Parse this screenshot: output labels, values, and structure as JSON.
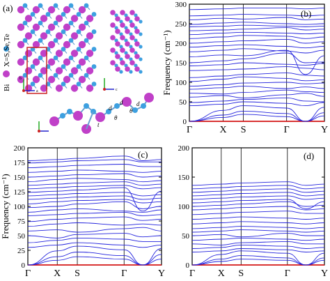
{
  "panel_a": {
    "label": "(a)",
    "legend_bi": "Bi",
    "legend_x": "X=S,Se,Te",
    "axis_b": "b",
    "axis_c": "c",
    "axis_a": "a",
    "geom_labels": {
      "d1": "d",
      "d2": "d",
      "d3": "d",
      "t": "t",
      "theta1": "θ",
      "theta2": "θ"
    },
    "colors": {
      "bi": "#c040c8",
      "x": "#3da0e0",
      "bond": "#6aa0d0",
      "cell": "#cc2222"
    }
  },
  "chart_data": [
    {
      "id": "b",
      "type": "line",
      "title": "",
      "panel_label": "(b)",
      "xlabel": "",
      "ylabel": "Frequency (cm⁻¹)",
      "ylim": [
        0,
        300
      ],
      "yticks": [
        0,
        50,
        100,
        150,
        200,
        250,
        300
      ],
      "kpath": [
        {
          "label": "Γ",
          "x": 0.0
        },
        {
          "label": "X",
          "x": 0.25
        },
        {
          "label": "S",
          "x": 0.4
        },
        {
          "label": "Γ",
          "x": 0.72
        },
        {
          "label": "Y",
          "x": 1.0
        }
      ],
      "zero_line_color": "#dd0000",
      "line_color": "#2222dd",
      "series": [
        {
          "values": [
            0,
            10,
            18,
            12,
            0,
            14
          ]
        },
        {
          "values": [
            0,
            16,
            26,
            20,
            0,
            22
          ]
        },
        {
          "values": [
            0,
            28,
            40,
            34,
            0,
            36
          ]
        },
        {
          "values": [
            40,
            44,
            50,
            46,
            40,
            48
          ]
        },
        {
          "values": [
            48,
            52,
            56,
            60,
            52,
            50
          ]
        },
        {
          "values": [
            62,
            66,
            60,
            68,
            72,
            64
          ]
        },
        {
          "values": [
            72,
            70,
            74,
            80,
            76,
            74
          ]
        },
        {
          "values": [
            82,
            86,
            90,
            84,
            88,
            84
          ]
        },
        {
          "values": [
            90,
            94,
            98,
            100,
            96,
            98
          ]
        },
        {
          "values": [
            102,
            108,
            114,
            110,
            104,
            106
          ]
        },
        {
          "values": [
            112,
            116,
            120,
            124,
            118,
            116
          ]
        },
        {
          "values": [
            130,
            132,
            134,
            140,
            136,
            132
          ]
        },
        {
          "values": [
            142,
            145,
            150,
            146,
            144,
            148
          ]
        },
        {
          "values": [
            150,
            155,
            160,
            175,
            150,
            152
          ]
        },
        {
          "values": [
            165,
            170,
            168,
            182,
            120,
            168
          ]
        },
        {
          "values": [
            178,
            182,
            186,
            180,
            175,
            182
          ]
        },
        {
          "values": [
            190,
            194,
            196,
            192,
            188,
            192
          ]
        },
        {
          "values": [
            200,
            204,
            206,
            210,
            200,
            204
          ]
        },
        {
          "values": [
            212,
            216,
            220,
            218,
            212,
            216
          ]
        },
        {
          "values": [
            222,
            226,
            228,
            226,
            224,
            226
          ]
        },
        {
          "values": [
            232,
            234,
            236,
            240,
            234,
            236
          ]
        },
        {
          "values": [
            242,
            244,
            246,
            244,
            242,
            244
          ]
        },
        {
          "values": [
            248,
            252,
            254,
            250,
            248,
            250
          ]
        },
        {
          "values": [
            260,
            264,
            262,
            266,
            260,
            262
          ]
        },
        {
          "values": [
            270,
            272,
            274,
            272,
            270,
            272
          ]
        },
        {
          "values": [
            286,
            288,
            290,
            290,
            288,
            290
          ]
        }
      ]
    },
    {
      "id": "c",
      "type": "line",
      "title": "",
      "panel_label": "(c)",
      "xlabel": "",
      "ylabel": "Frequency (cm⁻¹)",
      "ylim": [
        0,
        200
      ],
      "yticks": [
        0,
        25,
        50,
        75,
        100,
        125,
        150,
        175,
        200
      ],
      "kpath": [
        {
          "label": "Γ",
          "x": 0.0
        },
        {
          "label": "X",
          "x": 0.22
        },
        {
          "label": "S",
          "x": 0.37
        },
        {
          "label": "Γ",
          "x": 0.72
        },
        {
          "label": "Y",
          "x": 1.0
        }
      ],
      "zero_line_color": "#dd0000",
      "line_color": "#2222dd",
      "series": [
        {
          "values": [
            0,
            8,
            14,
            10,
            0,
            10
          ]
        },
        {
          "values": [
            0,
            14,
            22,
            16,
            0,
            18
          ]
        },
        {
          "values": [
            0,
            24,
            32,
            26,
            0,
            28
          ]
        },
        {
          "values": [
            30,
            34,
            38,
            34,
            30,
            34
          ]
        },
        {
          "values": [
            38,
            42,
            46,
            44,
            40,
            40
          ]
        },
        {
          "values": [
            50,
            46,
            52,
            54,
            48,
            50
          ]
        },
        {
          "values": [
            58,
            60,
            56,
            62,
            64,
            58
          ]
        },
        {
          "values": [
            66,
            70,
            72,
            68,
            70,
            68
          ]
        },
        {
          "values": [
            74,
            78,
            80,
            82,
            76,
            78
          ]
        },
        {
          "values": [
            84,
            86,
            88,
            90,
            84,
            86
          ]
        },
        {
          "values": [
            90,
            94,
            96,
            92,
            90,
            94
          ]
        },
        {
          "values": [
            98,
            100,
            104,
            108,
            96,
            100
          ]
        },
        {
          "values": [
            104,
            108,
            110,
            112,
            106,
            108
          ]
        },
        {
          "values": [
            112,
            114,
            116,
            118,
            112,
            114
          ]
        },
        {
          "values": [
            118,
            120,
            122,
            124,
            118,
            120
          ]
        },
        {
          "values": [
            124,
            126,
            128,
            132,
            92,
            126
          ]
        },
        {
          "values": [
            130,
            132,
            134,
            136,
            130,
            132
          ]
        },
        {
          "values": [
            136,
            138,
            140,
            142,
            136,
            138
          ]
        },
        {
          "values": [
            142,
            146,
            148,
            146,
            142,
            144
          ]
        },
        {
          "values": [
            150,
            152,
            154,
            156,
            150,
            152
          ]
        },
        {
          "values": [
            158,
            160,
            162,
            160,
            158,
            160
          ]
        },
        {
          "values": [
            166,
            168,
            170,
            172,
            168,
            168
          ]
        },
        {
          "values": [
            174,
            176,
            178,
            180,
            176,
            176
          ]
        },
        {
          "values": [
            178,
            180,
            182,
            186,
            178,
            180
          ]
        }
      ]
    },
    {
      "id": "d",
      "type": "line",
      "title": "",
      "panel_label": "(d)",
      "xlabel": "",
      "ylabel": "",
      "ylim": [
        0,
        200
      ],
      "yticks": [
        0,
        50,
        100,
        150,
        200
      ],
      "kpath": [
        {
          "label": "Γ",
          "x": 0.0
        },
        {
          "label": "X",
          "x": 0.22
        },
        {
          "label": "S",
          "x": 0.37
        },
        {
          "label": "Γ",
          "x": 0.72
        },
        {
          "label": "Y",
          "x": 1.0
        }
      ],
      "zero_line_color": "#dd0000",
      "line_color": "#2222dd",
      "series": [
        {
          "values": [
            0,
            6,
            10,
            8,
            0,
            8
          ]
        },
        {
          "values": [
            0,
            10,
            16,
            12,
            0,
            12
          ]
        },
        {
          "values": [
            0,
            18,
            24,
            20,
            0,
            20
          ]
        },
        {
          "values": [
            22,
            24,
            28,
            26,
            22,
            24
          ]
        },
        {
          "values": [
            28,
            30,
            34,
            32,
            28,
            30
          ]
        },
        {
          "values": [
            36,
            34,
            38,
            40,
            36,
            36
          ]
        },
        {
          "values": [
            42,
            44,
            46,
            44,
            42,
            44
          ]
        },
        {
          "values": [
            50,
            52,
            48,
            54,
            50,
            50
          ]
        },
        {
          "values": [
            56,
            58,
            60,
            58,
            56,
            58
          ]
        },
        {
          "values": [
            62,
            64,
            66,
            64,
            62,
            64
          ]
        },
        {
          "values": [
            70,
            72,
            74,
            72,
            70,
            72
          ]
        },
        {
          "values": [
            78,
            80,
            82,
            80,
            78,
            80
          ]
        },
        {
          "values": [
            86,
            88,
            90,
            92,
            88,
            88
          ]
        },
        {
          "values": [
            94,
            96,
            98,
            100,
            94,
            96
          ]
        },
        {
          "values": [
            100,
            102,
            104,
            108,
            100,
            102
          ]
        },
        {
          "values": [
            106,
            108,
            110,
            112,
            96,
            108
          ]
        },
        {
          "values": [
            112,
            114,
            116,
            118,
            112,
            114
          ]
        },
        {
          "values": [
            118,
            120,
            122,
            124,
            118,
            120
          ]
        },
        {
          "values": [
            124,
            126,
            128,
            130,
            124,
            126
          ]
        },
        {
          "values": [
            130,
            132,
            134,
            136,
            130,
            132
          ]
        },
        {
          "values": [
            136,
            138,
            140,
            142,
            136,
            138
          ]
        }
      ]
    }
  ]
}
